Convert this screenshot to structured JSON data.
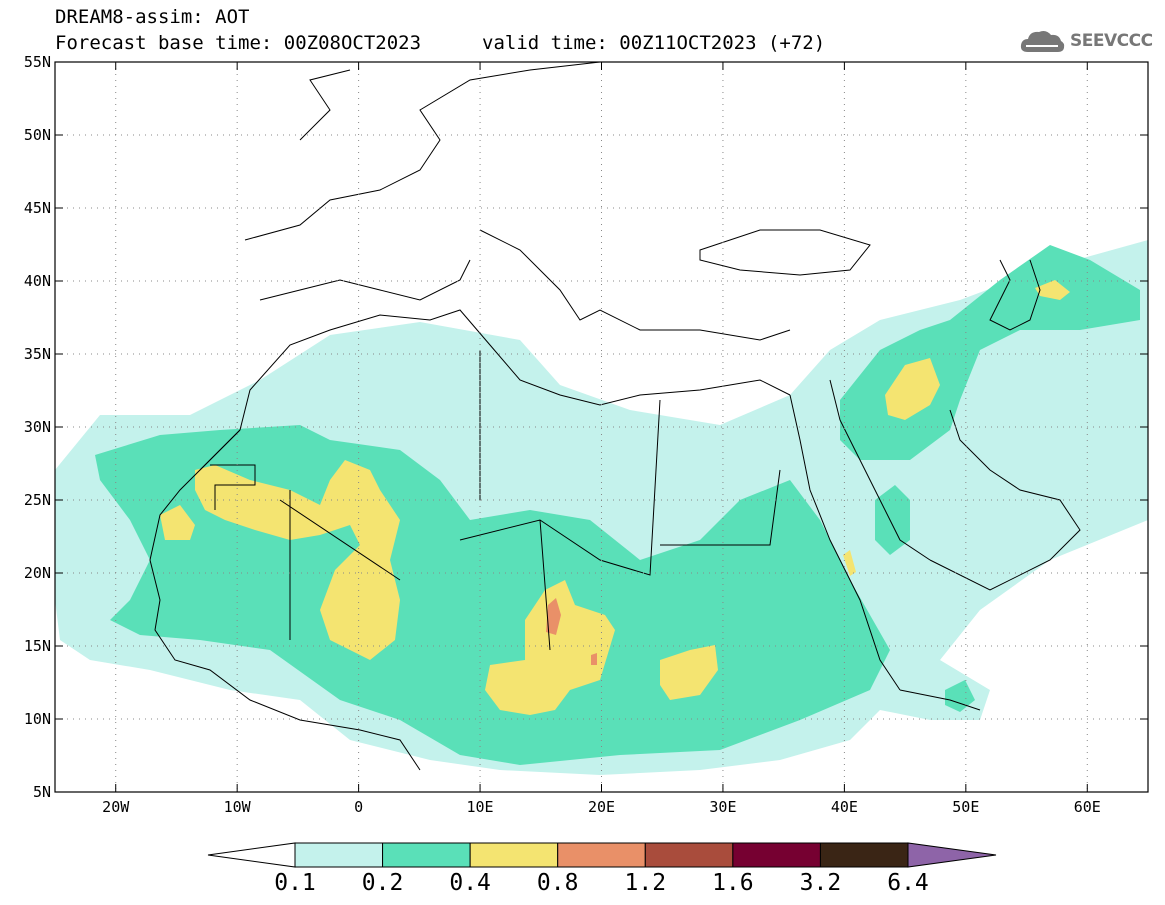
{
  "header": {
    "title_line1": "DREAM8-assim: AOT",
    "title_line2": "Forecast base time: 00Z08OCT2023",
    "title_line2b": "valid time: 00Z11OCT2023 (+72)",
    "logo_text": "SEEVCCC",
    "logo_icon": "cloud-icon"
  },
  "map": {
    "lon_range": [
      -25,
      65
    ],
    "lat_range": [
      5,
      55
    ],
    "y_ticks": [
      "5N",
      "10N",
      "15N",
      "20N",
      "25N",
      "30N",
      "35N",
      "40N",
      "45N",
      "50N",
      "55N"
    ],
    "x_ticks": [
      "20W",
      "10W",
      "0",
      "10E",
      "20E",
      "30E",
      "40E",
      "50E",
      "60E"
    ]
  },
  "colorbar": {
    "levels": [
      "0.1",
      "0.2",
      "0.4",
      "0.8",
      "1.2",
      "1.6",
      "3.2",
      "6.4"
    ],
    "colors": [
      "#c4f2ec",
      "#5ae0b8",
      "#f4e471",
      "#e99068",
      "#a94c3c",
      "#760031",
      "#3a2515",
      "#8e64a8"
    ]
  }
}
